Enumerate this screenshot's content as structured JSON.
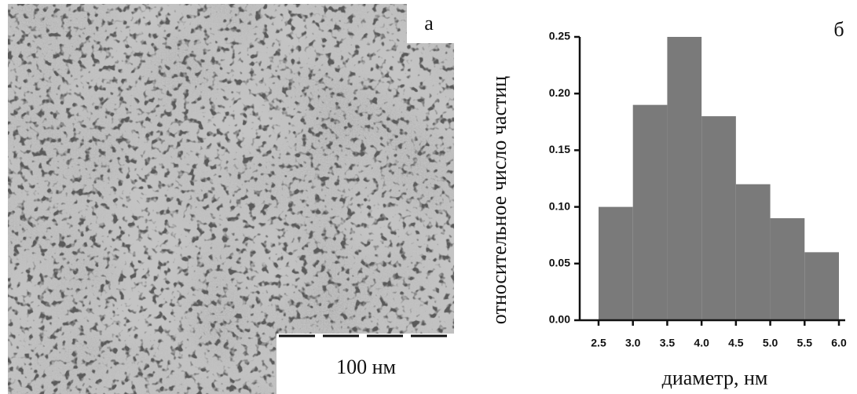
{
  "image_panel": {
    "label": "а",
    "scale_bar": "100 нм"
  },
  "chart_data": {
    "type": "histogram",
    "panel_label": "б",
    "xlabel": "диаметр, нм",
    "ylabel": "относительное число частиц",
    "bins": [
      2.5,
      3.0,
      3.5,
      4.0,
      4.5,
      5.0,
      5.5,
      6.0
    ],
    "values": [
      0.1,
      0.19,
      0.25,
      0.18,
      0.12,
      0.09,
      0.06
    ],
    "color": "#7a7a7a",
    "xlim": [
      2.5,
      6.0
    ],
    "xticks": [
      2.5,
      {
        "value": 3,
        "label": "3.0"
      },
      3.5,
      {
        "value": 4,
        "label": "4.0"
      },
      4.5,
      {
        "value": 5,
        "label": "5.0"
      },
      5.5,
      {
        "value": 6,
        "label": "6.0"
      }
    ],
    "ylim": [
      0,
      0.25
    ],
    "yticks": [
      {
        "value": 0,
        "label": "0.00"
      },
      0.05,
      {
        "value": 0.1,
        "label": "0.10"
      },
      0.15,
      {
        "value": 0.2,
        "label": "0.20"
      },
      0.25
    ]
  }
}
